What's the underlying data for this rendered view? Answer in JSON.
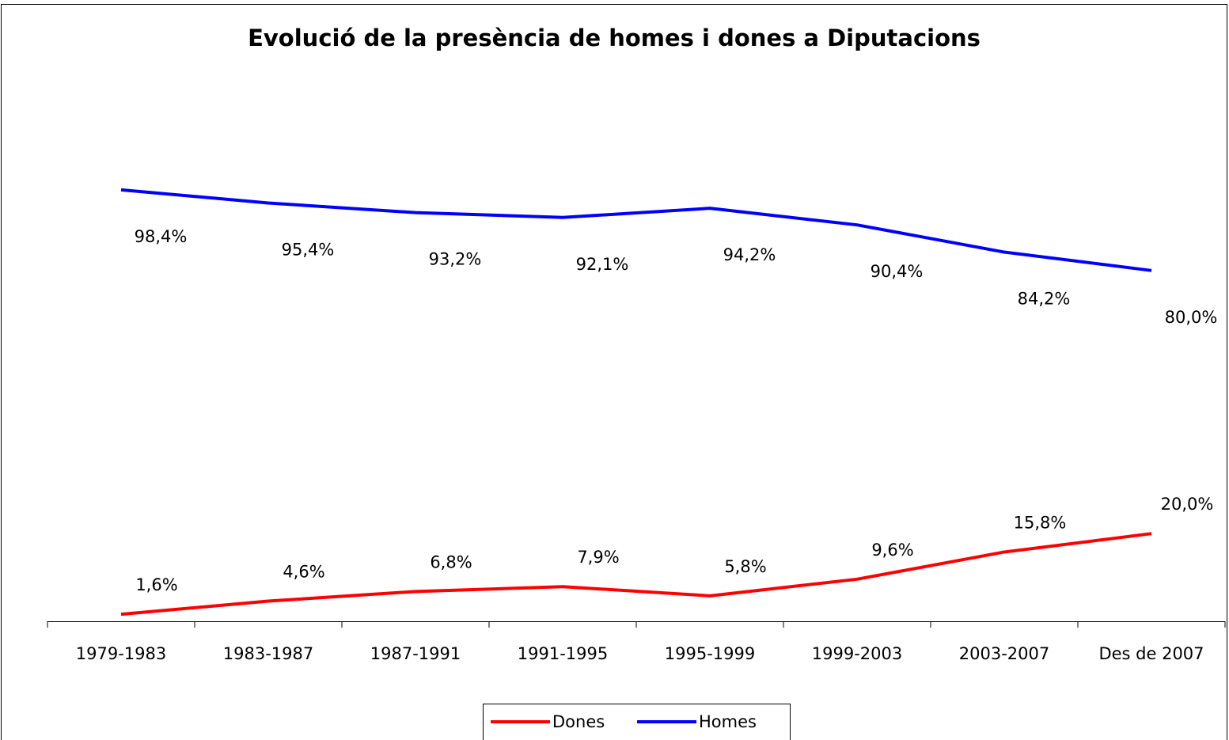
{
  "chart_data": {
    "type": "line",
    "title": "Evolució de la presència de homes i dones a Diputacions",
    "categories": [
      "1979-1983",
      "1983-1987",
      "1987-1991",
      "1991-1995",
      "1995-1999",
      "1999-2003",
      "2003-2007",
      "Des de 2007"
    ],
    "series": [
      {
        "name": "Dones",
        "color": "#ff0000",
        "values": [
          1.6,
          4.6,
          6.8,
          7.9,
          5.8,
          9.6,
          15.8,
          20.0
        ],
        "value_labels": [
          "1,6%",
          "4,6%",
          "6,8%",
          "7,9%",
          "5,8%",
          "9,6%",
          "15,8%",
          "20,0%"
        ]
      },
      {
        "name": "Homes",
        "color": "#0000ff",
        "values": [
          98.4,
          95.4,
          93.2,
          92.1,
          94.2,
          90.4,
          84.2,
          80.0
        ],
        "value_labels": [
          "98,4%",
          "95,4%",
          "93,2%",
          "92,1%",
          "94,2%",
          "90,4%",
          "84,2%",
          "80,0%"
        ]
      }
    ],
    "ylim": [
      0,
      100
    ],
    "legend": "bottom"
  }
}
